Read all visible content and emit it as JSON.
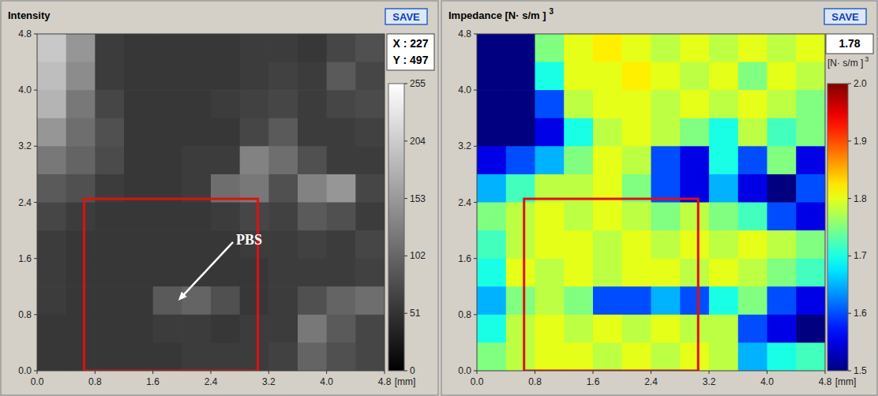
{
  "chart_data": [
    {
      "type": "heatmap",
      "title": "Intensity",
      "button": "SAVE",
      "readout": [
        "X : 227",
        "Y : 497"
      ],
      "color": "gray",
      "xlim": [
        0,
        4.8
      ],
      "ylim": [
        0,
        4.8
      ],
      "xticks": [
        {
          "value": 0,
          "label": "0.0"
        },
        {
          "value": 0.8,
          "label": "0.8"
        },
        {
          "value": 1.6,
          "label": "1.6"
        },
        {
          "value": 2.4,
          "label": "2.4"
        },
        {
          "value": 3.2,
          "label": "3.2"
        },
        {
          "value": 4.0,
          "label": "4.0"
        },
        {
          "value": 4.8,
          "label": "4.8"
        }
      ],
      "yticks": [
        {
          "value": 0,
          "label": "0.0"
        },
        {
          "value": 0.8,
          "label": "0.8"
        },
        {
          "value": 1.6,
          "label": "1.6"
        },
        {
          "value": 2.4,
          "label": "2.4"
        },
        {
          "value": 3.2,
          "label": "3.2"
        },
        {
          "value": 4.0,
          "label": "4.0"
        },
        {
          "value": 4.8,
          "label": "4.8"
        }
      ],
      "x_unit": "[mm]",
      "cells": [
        [
          200,
          150,
          60,
          55,
          55,
          55,
          55,
          60,
          60,
          55,
          70,
          80
        ],
        [
          190,
          140,
          60,
          55,
          55,
          55,
          55,
          60,
          65,
          60,
          90,
          70
        ],
        [
          180,
          120,
          70,
          55,
          55,
          55,
          60,
          65,
          70,
          60,
          70,
          75
        ],
        [
          150,
          110,
          80,
          55,
          55,
          55,
          55,
          70,
          90,
          60,
          60,
          65
        ],
        [
          120,
          100,
          75,
          55,
          55,
          60,
          60,
          130,
          110,
          80,
          60,
          60
        ],
        [
          90,
          80,
          60,
          55,
          55,
          60,
          110,
          120,
          80,
          130,
          150,
          70
        ],
        [
          70,
          60,
          55,
          55,
          55,
          55,
          60,
          70,
          65,
          90,
          80,
          60
        ],
        [
          60,
          55,
          55,
          55,
          55,
          55,
          55,
          60,
          60,
          65,
          60,
          70
        ],
        [
          60,
          55,
          55,
          55,
          55,
          55,
          55,
          55,
          60,
          60,
          60,
          65
        ],
        [
          60,
          55,
          55,
          55,
          90,
          100,
          80,
          55,
          60,
          80,
          100,
          110
        ],
        [
          55,
          55,
          55,
          55,
          60,
          60,
          55,
          60,
          60,
          120,
          90,
          70
        ],
        [
          55,
          55,
          55,
          55,
          55,
          60,
          60,
          60,
          65,
          100,
          80,
          70
        ]
      ],
      "colorbar": {
        "range": [
          0,
          255
        ],
        "ticks": [
          0,
          51,
          102,
          153,
          204,
          255
        ]
      },
      "roi": {
        "x": [
          0.65,
          3.05
        ],
        "y": [
          0,
          2.45
        ]
      },
      "annotation": {
        "text": "PBS",
        "x": 2.75,
        "y": 1.8,
        "target_x": 1.95,
        "target_y": 1.0
      }
    },
    {
      "type": "heatmap",
      "title": "Impedance [N· s/m ]",
      "title_superscript": "3",
      "button": "SAVE",
      "readout": [
        "1.78"
      ],
      "unit": "[N· s/m ]",
      "unit_superscript": "3",
      "color": "jet",
      "xlim": [
        0,
        4.8
      ],
      "ylim": [
        0,
        4.8
      ],
      "xticks": [
        {
          "value": 0,
          "label": "0.0"
        },
        {
          "value": 0.8,
          "label": "0.8"
        },
        {
          "value": 1.6,
          "label": "1.6"
        },
        {
          "value": 2.4,
          "label": "2.4"
        },
        {
          "value": 3.2,
          "label": "3.2"
        },
        {
          "value": 4.0,
          "label": "4.0"
        },
        {
          "value": 4.8,
          "label": "4.8"
        }
      ],
      "yticks": [
        {
          "value": 0,
          "label": "0.0"
        },
        {
          "value": 0.8,
          "label": "0.8"
        },
        {
          "value": 1.6,
          "label": "1.6"
        },
        {
          "value": 2.4,
          "label": "2.4"
        },
        {
          "value": 3.2,
          "label": "3.2"
        },
        {
          "value": 4.0,
          "label": "4.0"
        },
        {
          "value": 4.8,
          "label": "4.8"
        }
      ],
      "x_unit": "[mm]",
      "cells": [
        [
          1.5,
          1.5,
          1.75,
          1.8,
          1.82,
          1.8,
          1.78,
          1.8,
          1.78,
          1.8,
          1.78,
          1.8
        ],
        [
          1.5,
          1.5,
          1.7,
          1.8,
          1.8,
          1.82,
          1.8,
          1.78,
          1.8,
          1.75,
          1.8,
          1.78
        ],
        [
          1.5,
          1.5,
          1.6,
          1.78,
          1.8,
          1.8,
          1.78,
          1.8,
          1.78,
          1.8,
          1.78,
          1.75
        ],
        [
          1.5,
          1.5,
          1.55,
          1.7,
          1.78,
          1.8,
          1.78,
          1.75,
          1.7,
          1.78,
          1.72,
          1.75
        ],
        [
          1.55,
          1.6,
          1.65,
          1.75,
          1.8,
          1.78,
          1.6,
          1.55,
          1.7,
          1.6,
          1.75,
          1.55
        ],
        [
          1.65,
          1.72,
          1.78,
          1.78,
          1.8,
          1.75,
          1.6,
          1.55,
          1.65,
          1.55,
          1.5,
          1.6
        ],
        [
          1.75,
          1.78,
          1.8,
          1.78,
          1.8,
          1.78,
          1.75,
          1.78,
          1.75,
          1.72,
          1.6,
          1.55
        ],
        [
          1.72,
          1.78,
          1.8,
          1.8,
          1.78,
          1.8,
          1.78,
          1.8,
          1.78,
          1.8,
          1.78,
          1.75
        ],
        [
          1.7,
          1.8,
          1.78,
          1.8,
          1.78,
          1.8,
          1.8,
          1.78,
          1.8,
          1.78,
          1.75,
          1.72
        ],
        [
          1.65,
          1.75,
          1.78,
          1.75,
          1.6,
          1.6,
          1.65,
          1.6,
          1.7,
          1.75,
          1.6,
          1.55
        ],
        [
          1.7,
          1.78,
          1.8,
          1.78,
          1.8,
          1.78,
          1.8,
          1.78,
          1.78,
          1.6,
          1.55,
          1.5
        ],
        [
          1.75,
          1.78,
          1.8,
          1.8,
          1.78,
          1.8,
          1.78,
          1.8,
          1.78,
          1.65,
          1.7,
          1.72
        ]
      ],
      "colorbar": {
        "range": [
          1.5,
          2.0
        ],
        "ticks": [
          {
            "value": 1.5,
            "label": "1.5"
          },
          {
            "value": 1.6,
            "label": "1.6"
          },
          {
            "value": 1.7,
            "label": "1.7"
          },
          {
            "value": 1.8,
            "label": "1.8"
          },
          {
            "value": 1.9,
            "label": "1.9"
          },
          {
            "value": 2.0,
            "label": "2.0"
          }
        ]
      },
      "roi": {
        "x": [
          0.65,
          3.05
        ],
        "y": [
          0,
          2.45
        ]
      }
    }
  ]
}
